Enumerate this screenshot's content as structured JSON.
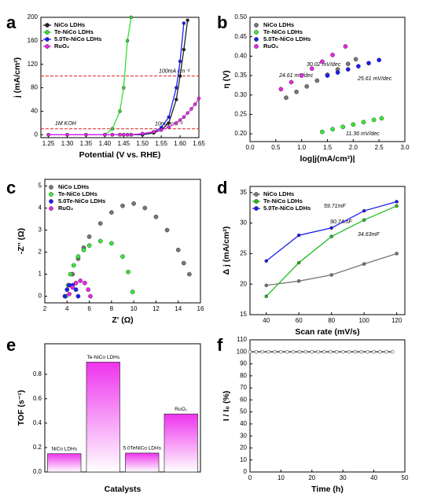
{
  "chart_data": [
    {
      "type": "line",
      "panel_label": "a",
      "x_label": "Potential (V vs. RHE)",
      "y_label": "j (mA/cm²)",
      "x": [
        1.25,
        1.3,
        1.35,
        1.4,
        1.42,
        1.44,
        1.45,
        1.46,
        1.47,
        1.5,
        1.53,
        1.55,
        1.57,
        1.59,
        1.6,
        1.61,
        1.62,
        1.63,
        1.64,
        1.65
      ],
      "series": [
        {
          "name": "NiCo LDHs",
          "color": "#222222",
          "values": [
            0,
            0,
            0,
            0,
            0,
            0,
            0,
            0,
            0,
            0,
            3,
            8,
            20,
            60,
            100,
            145,
            195,
            null,
            null,
            null
          ]
        },
        {
          "name": "Te-NiCo LDHs",
          "color": "#33dd33",
          "values": [
            0,
            0,
            0,
            0,
            10,
            40,
            80,
            160,
            200,
            null,
            null,
            null,
            null,
            null,
            null,
            null,
            null,
            null,
            null,
            null
          ]
        },
        {
          "name": "5.0Te-NiCo LDHs",
          "color": "#1a1aff",
          "values": [
            0,
            0,
            0,
            0,
            0,
            0,
            0,
            0,
            0,
            1,
            5,
            12,
            30,
            80,
            125,
            190,
            null,
            null,
            null,
            null
          ]
        },
        {
          "name": "RuO₂",
          "color": "#ee22ee",
          "values": [
            0,
            0,
            0,
            0,
            0,
            0,
            0,
            0,
            0,
            2,
            5,
            8,
            13,
            20,
            25,
            30,
            37,
            44,
            52,
            62
          ]
        }
      ],
      "hlines": [
        100,
        10
      ],
      "hline_color": "#dd2222",
      "annotations": [
        {
          "text": "100mA cm⁻²",
          "color": "#dd2222"
        },
        {
          "text": "10mA cm⁻²",
          "color": "#dd2222"
        },
        {
          "text": "1M KOH",
          "color": "#000000"
        }
      ],
      "markers": true,
      "legend": "upper left",
      "xlim": [
        1.23,
        1.65
      ],
      "xticks": [
        1.25,
        {
          "value": 1.3,
          "label": "1.30"
        },
        1.35,
        {
          "value": 1.4,
          "label": "1.40"
        },
        1.45,
        {
          "value": 1.5,
          "label": "1.50"
        },
        1.55,
        {
          "value": 1.6,
          "label": "1.60"
        },
        1.65
      ],
      "ylim": [
        -5,
        200
      ],
      "yticks": [
        0,
        40,
        80,
        120,
        160,
        200
      ]
    },
    {
      "type": "scatter",
      "panel_label": "b",
      "x_label": "log|j(mA/cm²)|",
      "y_label": "η (V)",
      "series": [
        {
          "name": "NiCo LDHs",
          "color": "#777777",
          "x": [
            0.7,
            0.9,
            1.1,
            1.3,
            1.5,
            1.7,
            1.9,
            2.05
          ],
          "values": [
            0.293,
            0.308,
            0.322,
            0.337,
            0.352,
            0.366,
            0.38,
            0.392
          ]
        },
        {
          "name": "Te-NiCo LDHs",
          "color": "#33ee33",
          "x": [
            1.4,
            1.6,
            1.8,
            2.0,
            2.2,
            2.4,
            2.55
          ],
          "values": [
            0.205,
            0.212,
            0.218,
            0.224,
            0.23,
            0.236,
            0.24
          ]
        },
        {
          "name": "5.0Te-NiCo LDHs",
          "color": "#1a1aff",
          "x": [
            1.5,
            1.7,
            1.9,
            2.1,
            2.3,
            2.5
          ],
          "values": [
            0.35,
            0.358,
            0.366,
            0.374,
            0.382,
            0.39
          ]
        },
        {
          "name": "RuO₂",
          "color": "#ee22ee",
          "x": [
            0.6,
            0.8,
            1.0,
            1.2,
            1.4,
            1.6,
            1.85
          ],
          "values": [
            0.315,
            0.333,
            0.35,
            0.368,
            0.386,
            0.403,
            0.425
          ]
        }
      ],
      "annotations": [
        {
          "text": "24.61 mV/dec",
          "color": "#ee22ee"
        },
        {
          "text": "30.02 mV/dec",
          "color": "#555555"
        },
        {
          "text": "25.61 mV/dec",
          "color": "#1a1aff"
        },
        {
          "text": "11.36 mV/dec",
          "color": "#22aa22"
        }
      ],
      "legend": "upper left",
      "xlim": [
        0,
        3
      ],
      "xticks": [
        {
          "value": 0,
          "label": "0.0"
        },
        0.5,
        {
          "value": 1,
          "label": "1.0"
        },
        1.5,
        {
          "value": 2,
          "label": "2.0"
        },
        2.5,
        {
          "value": 3,
          "label": "3.0"
        }
      ],
      "ylim": [
        0.18,
        0.5
      ],
      "yticks": [
        {
          "value": 0.2,
          "label": "0.20"
        },
        0.25,
        {
          "value": 0.3,
          "label": "0.30"
        },
        0.35,
        {
          "value": 0.4,
          "label": "0.40"
        },
        0.45,
        {
          "value": 0.5,
          "label": "0.50"
        }
      ]
    },
    {
      "type": "scatter",
      "panel_label": "c",
      "x_label": "Z' (Ω)",
      "y_label": "-Z'' (Ω)",
      "series": [
        {
          "name": "NiCo LDHs",
          "color": "#777777",
          "x": [
            4,
            4.5,
            5,
            5.5,
            6,
            7,
            8,
            9,
            10,
            11,
            12,
            13,
            14,
            14.5,
            15
          ],
          "values": [
            0.3,
            1.0,
            1.7,
            2.2,
            2.7,
            3.3,
            3.8,
            4.1,
            4.2,
            4.0,
            3.6,
            3.0,
            2.1,
            1.5,
            1.0
          ]
        },
        {
          "name": "Te-NiCo LDHs",
          "color": "#33ee33",
          "x": [
            3.9,
            4.1,
            4.3,
            4.6,
            5,
            5.5,
            6,
            7,
            8,
            9,
            9.5,
            9.9
          ],
          "values": [
            0,
            0.5,
            1.0,
            1.4,
            1.8,
            2.1,
            2.3,
            2.5,
            2.4,
            1.8,
            1.1,
            0.2
          ]
        },
        {
          "name": "5.0Te-NiCo LDHs",
          "color": "#1a1aff",
          "x": [
            3.8,
            4.0,
            4.2,
            4.5,
            4.8,
            5.0
          ],
          "values": [
            0,
            0.3,
            0.5,
            0.5,
            0.3,
            0
          ]
        },
        {
          "name": "RuO₂",
          "color": "#ee22ee",
          "x": [
            4.2,
            4.5,
            4.8,
            5.2,
            5.6,
            5.9,
            6.1
          ],
          "values": [
            0.1,
            0.4,
            0.6,
            0.7,
            0.6,
            0.3,
            0
          ]
        }
      ],
      "legend": "upper left",
      "xlim": [
        2,
        16
      ],
      "xticks": [
        2,
        4,
        6,
        8,
        10,
        12,
        14,
        16
      ],
      "ylim": [
        -0.3,
        5.3
      ],
      "yticks": [
        0,
        1,
        2,
        3,
        4,
        5
      ]
    },
    {
      "type": "line",
      "panel_label": "d",
      "x_label": "Scan rate (mV/s)",
      "y_label": "Δ j (mA/cm²)",
      "x": [
        40,
        60,
        80,
        100,
        120
      ],
      "series": [
        {
          "name": "NiCo LDHs",
          "color": "#777777",
          "values": [
            19.8,
            20.5,
            21.5,
            23.3,
            25
          ]
        },
        {
          "name": "Te-NiCo LDHs",
          "color": "#22bb22",
          "values": [
            18,
            23.5,
            27.8,
            30.5,
            32.8
          ]
        },
        {
          "name": "5.0Te-NiCo LDHs",
          "color": "#1a1aee",
          "values": [
            23.8,
            28,
            29.2,
            32,
            33.5
          ]
        }
      ],
      "annotations": [
        {
          "text": "59.71mF",
          "color": "#1a1aee"
        },
        {
          "text": "90.74mF",
          "color": "#22bb22"
        },
        {
          "text": "34.63mF",
          "color": "#666666"
        }
      ],
      "markers": true,
      "legend": "upper left",
      "xlim": [
        30,
        125
      ],
      "xticks": [
        40,
        60,
        80,
        100,
        120
      ],
      "ylim": [
        15,
        36
      ],
      "yticks": [
        15,
        20,
        25,
        30,
        35
      ]
    },
    {
      "type": "bar",
      "panel_label": "e",
      "x_label": "Catalysts",
      "y_label": "TOF (s⁻¹)",
      "categories": [
        "NiCo LDHs",
        "Te-NiCo LDHs",
        "5.0TeNiCo LDHs",
        "RuO₂"
      ],
      "values": [
        0.15,
        0.9,
        0.155,
        0.475
      ],
      "color": "#ee33ee",
      "ylim": [
        0,
        1.05
      ],
      "yticks": [
        {
          "value": 0,
          "label": "0.0"
        },
        0.2,
        0.4,
        0.6,
        0.8
      ]
    },
    {
      "type": "line",
      "panel_label": "f",
      "x_label": "Time (h)",
      "y_label": "I / I₀ (%)",
      "series": [
        {
          "color": "#222222",
          "x": [
            0,
            2,
            4,
            6,
            8,
            10,
            12,
            14,
            16,
            18,
            20,
            22,
            24,
            26,
            28,
            30,
            32,
            34,
            36,
            38,
            40,
            42,
            44,
            46
          ],
          "values": [
            100,
            100,
            100,
            100,
            100,
            100,
            100,
            100,
            100,
            100,
            100,
            100,
            100,
            100,
            100,
            100,
            100,
            100,
            100,
            100,
            100,
            100,
            100,
            100
          ]
        }
      ],
      "markers": true,
      "open_markers": true,
      "xlim": [
        0,
        50
      ],
      "xticks": [
        0,
        10,
        20,
        30,
        40,
        50
      ],
      "ylim": [
        0,
        110
      ],
      "yticks": [
        0,
        10,
        20,
        30,
        40,
        50,
        60,
        70,
        80,
        90,
        100,
        110
      ]
    }
  ]
}
